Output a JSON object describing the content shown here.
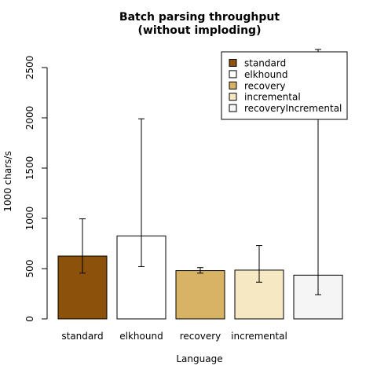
{
  "chart_data": {
    "type": "bar",
    "title_lines": [
      "Batch parsing throughput",
      "(without imploding)"
    ],
    "xlabel": "Language",
    "ylabel": "1000 chars/s",
    "ylim": [
      0,
      2500
    ],
    "yticks": [
      0,
      500,
      1000,
      1500,
      2000,
      2500
    ],
    "grid": false,
    "legend_position": "top-right",
    "categories": [
      "standard",
      "elkhound",
      "recovery",
      "incremental",
      ""
    ],
    "series": [
      {
        "name": "standard",
        "value": 625,
        "err_low": 455,
        "err_high": 995,
        "color": "#8c510a"
      },
      {
        "name": "elkhound",
        "value": 825,
        "err_low": 520,
        "err_high": 1990,
        "color": "#ffffff"
      },
      {
        "name": "recovery",
        "value": 480,
        "err_low": 455,
        "err_high": 510,
        "color": "#d8b365"
      },
      {
        "name": "incremental",
        "value": 485,
        "err_low": 365,
        "err_high": 730,
        "color": "#f6e8c3"
      },
      {
        "name": "recoveryIncremental",
        "value": 435,
        "err_low": 240,
        "err_high": 2680,
        "color": "#f5f5f5"
      }
    ]
  }
}
